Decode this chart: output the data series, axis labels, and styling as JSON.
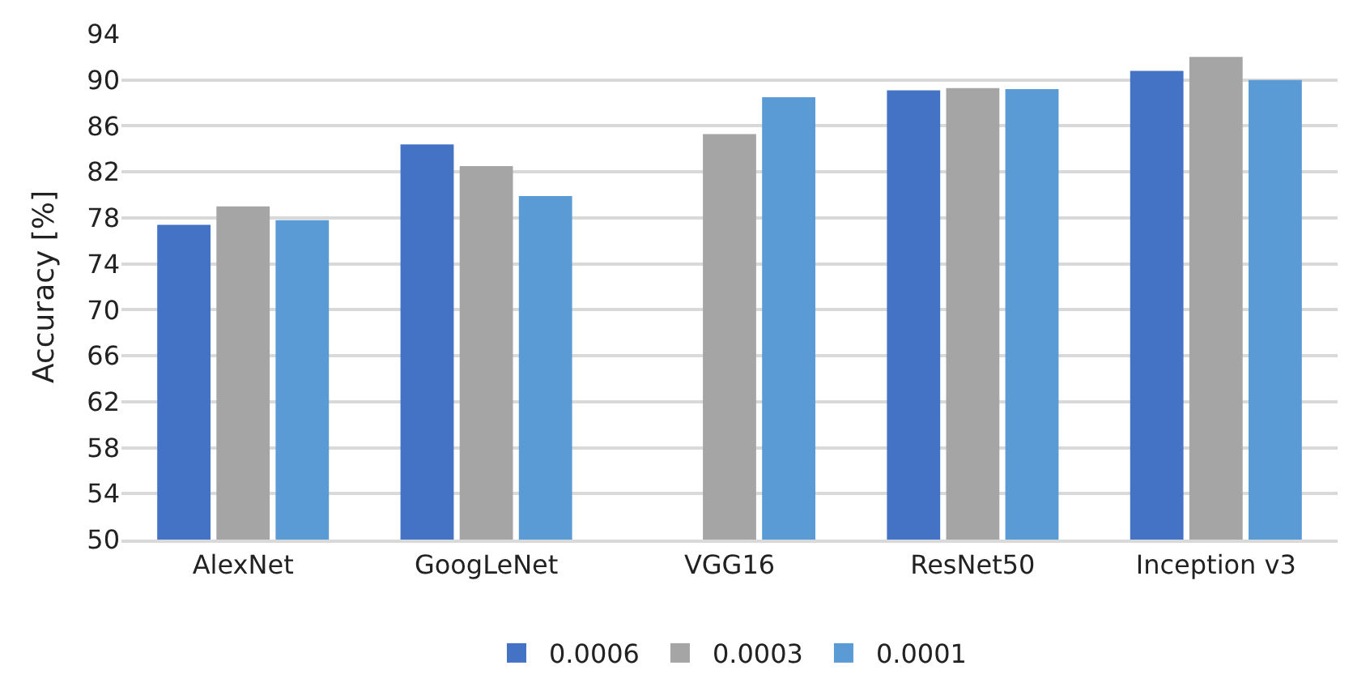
{
  "chart_data": {
    "type": "bar",
    "ylabel": "Accuracy [%]",
    "categories": [
      "AlexNet",
      "GoogLeNet",
      "VGG16",
      "ResNet50",
      "Inception v3"
    ],
    "series": [
      {
        "name": "0.0006",
        "color": "#4472c4",
        "values": [
          77.4,
          84.4,
          null,
          89.1,
          90.8
        ]
      },
      {
        "name": "0.0003",
        "color": "#a5a5a5",
        "values": [
          79.0,
          82.5,
          85.3,
          89.3,
          92.0
        ]
      },
      {
        "name": "0.0001",
        "color": "#5b9bd5",
        "values": [
          77.8,
          79.9,
          88.5,
          89.2,
          90.0
        ]
      }
    ],
    "ylim": [
      50,
      94
    ],
    "yticks": [
      50,
      54,
      58,
      62,
      66,
      70,
      74,
      78,
      82,
      86,
      90,
      94
    ],
    "grid": "y",
    "legend": "bottom"
  }
}
